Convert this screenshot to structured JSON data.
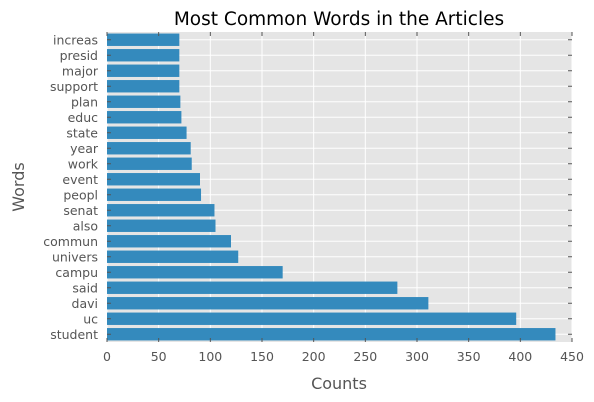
{
  "chart_data": {
    "type": "bar",
    "orientation": "horizontal",
    "title": "Most Common Words in the Articles",
    "xlabel": "Counts",
    "ylabel": "Words",
    "xlim": [
      0,
      450
    ],
    "xticks": [
      0,
      50,
      100,
      150,
      200,
      250,
      300,
      350,
      400,
      450
    ],
    "grid": true,
    "categories": [
      "student",
      "uc",
      "davi",
      "said",
      "campu",
      "univers",
      "commun",
      "also",
      "senat",
      "peopl",
      "event",
      "work",
      "year",
      "state",
      "educ",
      "plan",
      "support",
      "major",
      "presid",
      "increas"
    ],
    "values": [
      434,
      396,
      311,
      281,
      170,
      127,
      120,
      105,
      104,
      91,
      90,
      82,
      81,
      77,
      72,
      71,
      70,
      70,
      70,
      70
    ],
    "colors": {
      "bar": "#348ABD",
      "plot_background": "#E5E5E5",
      "grid": "#FFFFFF",
      "text": "#555555"
    }
  }
}
